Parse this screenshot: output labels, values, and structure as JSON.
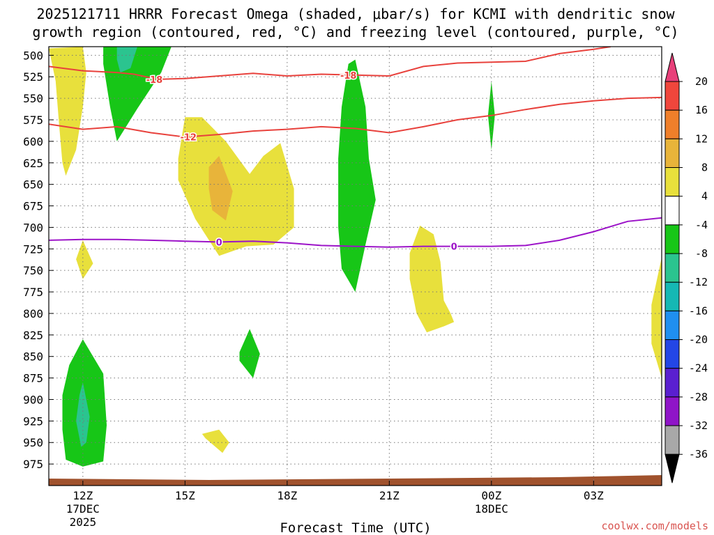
{
  "title": {
    "line1": "2025121711 HRRR Forecast Omega (shaded, μbar/s) for KCMI with dendritic snow",
    "line2": "growth region (contoured, red, °C) and freezing level (contoured, purple, °C)"
  },
  "credit": "coolwx.com/models",
  "chart_data": {
    "type": "contour-cross-section",
    "title": "2025121711 HRRR Forecast Omega (shaded, μbar/s) for KCMI with dendritic snow growth region (contoured, red, °C) and freezing level (contoured, purple, °C)",
    "xlabel": "Forecast Time (UTC)",
    "ylabel": "",
    "x_ticks": [
      {
        "hour": 12,
        "l1": "12Z",
        "l2": "17DEC",
        "l3": "2025"
      },
      {
        "hour": 15,
        "l1": "15Z",
        "l2": "",
        "l3": ""
      },
      {
        "hour": 18,
        "l1": "18Z",
        "l2": "",
        "l3": ""
      },
      {
        "hour": 21,
        "l1": "21Z",
        "l2": "",
        "l3": ""
      },
      {
        "hour": 24,
        "l1": "00Z",
        "l2": "18DEC",
        "l3": ""
      },
      {
        "hour": 27,
        "l1": "03Z",
        "l2": "",
        "l3": ""
      }
    ],
    "xlim": [
      11,
      29
    ],
    "ylim": [
      1000,
      490
    ],
    "y_ticks": [
      500,
      525,
      550,
      575,
      600,
      625,
      650,
      675,
      700,
      725,
      750,
      775,
      800,
      825,
      850,
      875,
      900,
      925,
      950,
      975
    ],
    "y_tick_labels": [
      "500",
      "525",
      "550",
      "575",
      "600",
      "625",
      "650",
      "675",
      "700",
      "725",
      "750",
      "775",
      "800",
      "825",
      "850",
      "875",
      "900",
      "925",
      "950",
      "975"
    ],
    "grid": true,
    "colorbar": {
      "labels": [
        "20",
        "16",
        "12",
        "8",
        "4",
        "-4",
        "-8",
        "-12",
        "-16",
        "-20",
        "-24",
        "-28",
        "-32",
        "-36"
      ],
      "bands": [
        {
          "color": "#e8407a"
        },
        {
          "color": "#f0463c"
        },
        {
          "color": "#ef7f2a"
        },
        {
          "color": "#e8b43a"
        },
        {
          "color": "#e8e03c"
        },
        {
          "color": "#ffffff"
        },
        {
          "color": "#17c617"
        },
        {
          "color": "#2bc48f"
        },
        {
          "color": "#16b8b4"
        },
        {
          "color": "#1f8ff0"
        },
        {
          "color": "#2346e6"
        },
        {
          "color": "#5a1fd0"
        },
        {
          "color": "#8f14c8"
        },
        {
          "color": "#a8a8a8"
        },
        {
          "color": "#000000"
        }
      ]
    },
    "omega_regions": [
      {
        "level": 4,
        "color": "#e8e03c",
        "points": [
          [
            11.0,
            492
          ],
          [
            11.2,
            530
          ],
          [
            11.3,
            580
          ],
          [
            11.4,
            625
          ],
          [
            11.5,
            640
          ],
          [
            11.8,
            610
          ],
          [
            12.0,
            560
          ],
          [
            12.1,
            520
          ],
          [
            12.0,
            490
          ]
        ]
      },
      {
        "level": 4,
        "color": "#e8e03c",
        "points": [
          [
            11.8,
            737
          ],
          [
            12.0,
            715
          ],
          [
            12.3,
            742
          ],
          [
            12.0,
            760
          ]
        ]
      },
      {
        "level": 4,
        "color": "#e8e03c",
        "points": [
          [
            14.8,
            620
          ],
          [
            15.0,
            572
          ],
          [
            15.5,
            572
          ],
          [
            16.2,
            600
          ],
          [
            16.9,
            638
          ],
          [
            17.3,
            617
          ],
          [
            17.8,
            602
          ],
          [
            18.2,
            655
          ],
          [
            18.2,
            700
          ],
          [
            17.6,
            720
          ],
          [
            16.8,
            722
          ],
          [
            16.0,
            733
          ],
          [
            15.3,
            690
          ],
          [
            14.8,
            645
          ]
        ]
      },
      {
        "level": 8,
        "color": "#e8b43a",
        "points": [
          [
            15.7,
            630
          ],
          [
            16.0,
            617
          ],
          [
            16.4,
            658
          ],
          [
            16.2,
            692
          ],
          [
            15.8,
            680
          ],
          [
            15.7,
            655
          ]
        ]
      },
      {
        "level": 4,
        "color": "#e8e03c",
        "points": [
          [
            21.6,
            730
          ],
          [
            21.9,
            698
          ],
          [
            22.3,
            708
          ],
          [
            22.5,
            740
          ],
          [
            22.6,
            785
          ],
          [
            22.8,
            800
          ],
          [
            22.9,
            810
          ],
          [
            22.6,
            815
          ],
          [
            22.1,
            822
          ],
          [
            21.8,
            800
          ],
          [
            21.6,
            760
          ]
        ]
      },
      {
        "level": 4,
        "color": "#e8e03c",
        "points": [
          [
            15.5,
            940
          ],
          [
            16.0,
            935
          ],
          [
            16.3,
            950
          ],
          [
            16.1,
            962
          ],
          [
            15.6,
            945
          ]
        ]
      },
      {
        "level": 4,
        "color": "#e8e03c",
        "points": [
          [
            29.0,
            735
          ],
          [
            28.7,
            790
          ],
          [
            28.7,
            835
          ],
          [
            29.0,
            875
          ]
        ]
      },
      {
        "level": -4,
        "color": "#17c617",
        "points": [
          [
            12.6,
            490
          ],
          [
            13.1,
            490
          ],
          [
            14.6,
            490
          ],
          [
            14.3,
            520
          ],
          [
            13.6,
            562
          ],
          [
            13.0,
            600
          ],
          [
            12.8,
            560
          ],
          [
            12.6,
            510
          ]
        ]
      },
      {
        "level": -8,
        "color": "#2bc48f",
        "points": [
          [
            13.0,
            490
          ],
          [
            13.6,
            490
          ],
          [
            13.4,
            515
          ],
          [
            13.1,
            520
          ],
          [
            13.0,
            505
          ]
        ]
      },
      {
        "level": -4,
        "color": "#17c617",
        "points": [
          [
            19.6,
            560
          ],
          [
            19.8,
            510
          ],
          [
            20.0,
            505
          ],
          [
            20.3,
            560
          ],
          [
            20.4,
            620
          ],
          [
            20.6,
            668
          ],
          [
            20.3,
            720
          ],
          [
            20.0,
            775
          ],
          [
            19.6,
            748
          ],
          [
            19.5,
            700
          ],
          [
            19.5,
            620
          ]
        ]
      },
      {
        "level": -4,
        "color": "#17c617",
        "points": [
          [
            23.9,
            570
          ],
          [
            24.0,
            530
          ],
          [
            24.1,
            570
          ],
          [
            24.0,
            610
          ]
        ]
      },
      {
        "level": -4,
        "color": "#17c617",
        "points": [
          [
            16.6,
            845
          ],
          [
            16.9,
            818
          ],
          [
            17.2,
            847
          ],
          [
            17.0,
            875
          ],
          [
            16.6,
            855
          ]
        ]
      },
      {
        "level": -4,
        "color": "#17c617",
        "points": [
          [
            11.4,
            895
          ],
          [
            11.6,
            860
          ],
          [
            12.0,
            830
          ],
          [
            12.6,
            870
          ],
          [
            12.7,
            930
          ],
          [
            12.6,
            972
          ],
          [
            12.0,
            978
          ],
          [
            11.5,
            970
          ],
          [
            11.4,
            935
          ]
        ]
      },
      {
        "level": -8,
        "color": "#2bc48f",
        "points": [
          [
            11.8,
            925
          ],
          [
            11.9,
            895
          ],
          [
            12.0,
            880
          ],
          [
            12.2,
            920
          ],
          [
            12.1,
            950
          ],
          [
            11.95,
            955
          ]
        ]
      }
    ],
    "temperature_contours": [
      {
        "value": -18,
        "label": "-18",
        "color": "#e8413c",
        "label_points": [
          [
            14.1,
            528
          ],
          [
            19.8,
            523
          ]
        ],
        "points": [
          [
            11,
            513
          ],
          [
            12.0,
            518
          ],
          [
            13.0,
            520
          ],
          [
            13.5,
            522
          ],
          [
            14.2,
            528
          ],
          [
            15.0,
            527
          ],
          [
            16.0,
            524
          ],
          [
            17.0,
            521
          ],
          [
            18.0,
            524
          ],
          [
            19.0,
            522
          ],
          [
            20.0,
            523
          ],
          [
            21.0,
            524
          ],
          [
            22.0,
            513
          ],
          [
            23.0,
            509
          ],
          [
            24.0,
            508
          ],
          [
            25.0,
            507
          ],
          [
            26.0,
            498
          ],
          [
            27.0,
            493
          ],
          [
            27.5,
            490
          ]
        ]
      },
      {
        "value": -12,
        "label": "-12",
        "color": "#e8413c",
        "label_points": [
          [
            15.1,
            595
          ]
        ],
        "points": [
          [
            11,
            580
          ],
          [
            12.0,
            586
          ],
          [
            13.0,
            583
          ],
          [
            14.0,
            590
          ],
          [
            15.0,
            595
          ],
          [
            16.0,
            592
          ],
          [
            17.0,
            588
          ],
          [
            18.0,
            586
          ],
          [
            19.0,
            583
          ],
          [
            20.0,
            585
          ],
          [
            21.0,
            590
          ],
          [
            22.0,
            583
          ],
          [
            23.0,
            575
          ],
          [
            24.0,
            570
          ],
          [
            25.0,
            563
          ],
          [
            26.0,
            557
          ],
          [
            27.0,
            553
          ],
          [
            28.0,
            550
          ],
          [
            29.0,
            549
          ]
        ]
      },
      {
        "value": 0,
        "label": "0",
        "color": "#9c13c8",
        "label_points": [
          [
            16.0,
            717
          ],
          [
            22.9,
            722
          ]
        ],
        "points": [
          [
            11,
            715
          ],
          [
            12.0,
            714
          ],
          [
            13.0,
            714
          ],
          [
            14.0,
            715
          ],
          [
            15.0,
            716
          ],
          [
            16.0,
            717
          ],
          [
            17.0,
            716
          ],
          [
            18.0,
            718
          ],
          [
            19.0,
            721
          ],
          [
            20.0,
            722
          ],
          [
            21.0,
            723
          ],
          [
            22.0,
            722
          ],
          [
            23.0,
            722
          ],
          [
            24.0,
            722
          ],
          [
            25.0,
            721
          ],
          [
            26.0,
            715
          ],
          [
            27.0,
            705
          ],
          [
            28.0,
            693
          ],
          [
            29.0,
            689
          ]
        ]
      }
    ]
  }
}
